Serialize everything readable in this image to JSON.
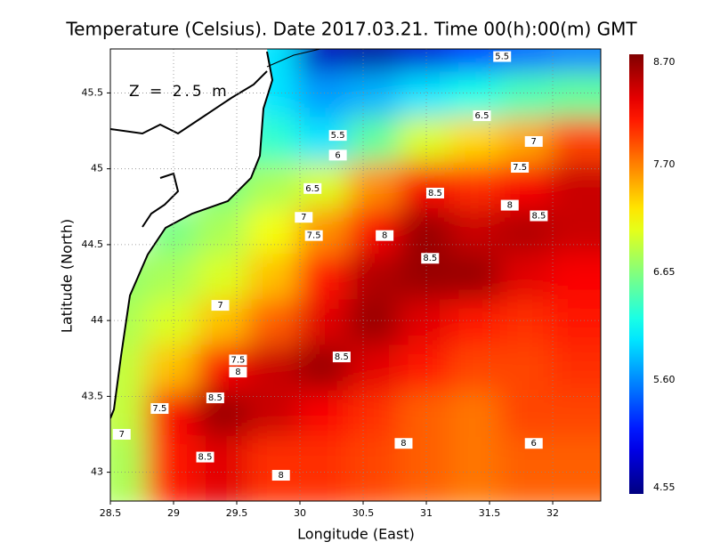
{
  "chart_data": {
    "type": "heatmap",
    "title": "Temperature (Celsius). Date 2017.03.21. Time 00(h):00(m)  GMT",
    "annotation": "Z = 2.5 m",
    "x_label": "Longitude (East)",
    "y_label": "Latitude (North)",
    "xlim": [
      28.5,
      32.38
    ],
    "ylim": [
      42.81,
      45.79
    ],
    "xticks": [
      28.5,
      29,
      29.5,
      30,
      30.5,
      31,
      31.5,
      32
    ],
    "yticks": [
      43,
      43.5,
      44,
      44.5,
      45,
      45.5
    ],
    "grid": true,
    "colormap": "jet",
    "clim": [
      4.55,
      8.7
    ],
    "cticks": [
      4.55,
      {
        "value": 5.6,
        "label": "5.60"
      },
      6.65,
      {
        "value": 7.7,
        "label": "7.70"
      },
      {
        "value": 8.7,
        "label": "8.70"
      }
    ],
    "x": [
      28.7,
      29.1,
      29.5,
      29.9,
      30.3,
      30.7,
      31.1,
      31.5,
      31.9,
      32.3
    ],
    "y": [
      45.7,
      45.4,
      45.1,
      44.8,
      44.5,
      44.2,
      43.9,
      43.6,
      43.3,
      43.0
    ],
    "values": [
      [
        null,
        null,
        null,
        6.0,
        4.8,
        4.7,
        4.9,
        5.3,
        5.5,
        5.6
      ],
      [
        null,
        null,
        null,
        6.0,
        5.7,
        5.8,
        6.0,
        6.2,
        6.4,
        6.5
      ],
      [
        null,
        null,
        6.5,
        6.3,
        6.0,
        6.5,
        7.0,
        7.3,
        7.5,
        7.9
      ],
      [
        null,
        null,
        6.6,
        6.8,
        7.0,
        7.6,
        8.2,
        8.0,
        8.2,
        8.4
      ],
      [
        null,
        6.6,
        6.8,
        7.1,
        7.6,
        8.2,
        8.6,
        8.4,
        8.5,
        8.4
      ],
      [
        6.7,
        6.8,
        7.0,
        7.4,
        8.1,
        8.5,
        8.6,
        8.6,
        8.3,
        8.2
      ],
      [
        6.8,
        7.0,
        7.4,
        7.8,
        8.3,
        8.6,
        8.3,
        8.1,
        8.0,
        8.1
      ],
      [
        6.9,
        7.4,
        8.2,
        8.4,
        8.6,
        8.3,
        8.1,
        7.9,
        7.9,
        8.0
      ],
      [
        6.9,
        8.2,
        8.6,
        8.4,
        8.2,
        8.0,
        7.8,
        7.7,
        7.9,
        7.9
      ],
      [
        6.8,
        8.1,
        8.3,
        8.0,
        8.0,
        7.9,
        7.8,
        7.7,
        7.8,
        7.8
      ]
    ],
    "contour_labels": [
      {
        "value": 5.5,
        "lon": 31.6,
        "lat": 45.74
      },
      {
        "value": 6.5,
        "lon": 31.44,
        "lat": 45.35
      },
      {
        "value": 7,
        "lon": 31.85,
        "lat": 45.18
      },
      {
        "value": 7.5,
        "lon": 31.74,
        "lat": 45.01
      },
      {
        "value": 5.5,
        "lon": 30.3,
        "lat": 45.22
      },
      {
        "value": 6,
        "lon": 30.3,
        "lat": 45.09
      },
      {
        "value": 6.5,
        "lon": 30.1,
        "lat": 44.87
      },
      {
        "value": 7,
        "lon": 30.03,
        "lat": 44.68
      },
      {
        "value": 7.5,
        "lon": 30.11,
        "lat": 44.56
      },
      {
        "value": 8,
        "lon": 30.67,
        "lat": 44.56
      },
      {
        "value": 8.5,
        "lon": 31.07,
        "lat": 44.84
      },
      {
        "value": 8,
        "lon": 31.66,
        "lat": 44.76
      },
      {
        "value": 8.5,
        "lon": 31.89,
        "lat": 44.69
      },
      {
        "value": 8.5,
        "lon": 31.03,
        "lat": 44.41
      },
      {
        "value": 7,
        "lon": 29.37,
        "lat": 44.1
      },
      {
        "value": 7.5,
        "lon": 29.51,
        "lat": 43.74
      },
      {
        "value": 8,
        "lon": 29.51,
        "lat": 43.66
      },
      {
        "value": 8.5,
        "lon": 30.33,
        "lat": 43.76
      },
      {
        "value": 8.5,
        "lon": 29.33,
        "lat": 43.49
      },
      {
        "value": 7.5,
        "lon": 28.89,
        "lat": 43.42
      },
      {
        "value": 7,
        "lon": 28.59,
        "lat": 43.25
      },
      {
        "value": 8.5,
        "lon": 29.25,
        "lat": 43.1
      },
      {
        "value": 8,
        "lon": 30.82,
        "lat": 43.19
      },
      {
        "value": 6,
        "lon": 31.85,
        "lat": 43.19
      },
      {
        "value": 8,
        "lon": 29.85,
        "lat": 42.98
      }
    ]
  }
}
